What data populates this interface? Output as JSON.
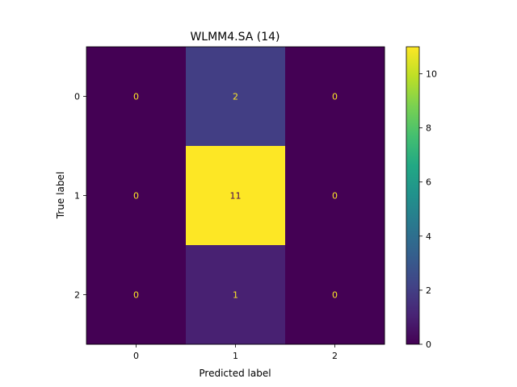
{
  "chart_data": {
    "type": "heatmap",
    "title": "WLMM4.SA (14)",
    "xlabel": "Predicted label",
    "ylabel": "True label",
    "x_categories": [
      "0",
      "1",
      "2"
    ],
    "y_categories": [
      "0",
      "1",
      "2"
    ],
    "values": [
      [
        0,
        2,
        0
      ],
      [
        0,
        11,
        0
      ],
      [
        0,
        1,
        0
      ]
    ],
    "colormap": "viridis",
    "colorbar": {
      "range": [
        0,
        11
      ],
      "ticks": [
        0,
        2,
        4,
        6,
        8,
        10
      ]
    },
    "colors": {
      "low_text": "#fde725",
      "high_text": "#440154"
    }
  }
}
